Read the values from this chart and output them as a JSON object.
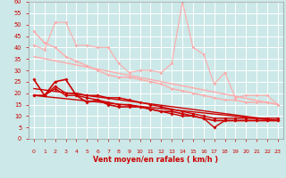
{
  "bg_color": "#cce8e8",
  "grid_color": "#ffffff",
  "xlabel": "Vent moyen/en rafales ( km/h )",
  "xlabel_color": "#cc0000",
  "tick_color": "#cc0000",
  "xlim": [
    -0.5,
    23.5
  ],
  "ylim": [
    0,
    60
  ],
  "yticks": [
    0,
    5,
    10,
    15,
    20,
    25,
    30,
    35,
    40,
    45,
    50,
    55,
    60
  ],
  "xticks": [
    0,
    1,
    2,
    3,
    4,
    5,
    6,
    7,
    8,
    9,
    10,
    11,
    12,
    13,
    14,
    15,
    16,
    17,
    18,
    19,
    20,
    21,
    22,
    23
  ],
  "lines": [
    {
      "x": [
        0,
        1,
        2,
        3,
        4,
        5,
        6,
        7,
        8,
        9,
        10,
        11,
        12,
        13,
        14,
        15,
        16,
        17,
        18,
        19,
        20,
        21,
        22,
        23
      ],
      "y": [
        47,
        42,
        40,
        36,
        34,
        32,
        30,
        28,
        27,
        27,
        26,
        25,
        24,
        22,
        21,
        20,
        19,
        18,
        17,
        17,
        16,
        16,
        16,
        15
      ],
      "color": "#ffaaaa",
      "lw": 1.0,
      "marker": "D",
      "ms": 1.8,
      "zorder": 2
    },
    {
      "x": [
        0,
        1,
        2,
        3,
        4,
        5,
        6,
        7,
        8,
        9,
        10,
        11,
        12,
        13,
        14,
        15,
        16,
        17,
        18,
        19,
        20,
        21,
        22,
        23
      ],
      "y": [
        41,
        39,
        51,
        51,
        41,
        41,
        40,
        40,
        33,
        29,
        30,
        30,
        29,
        33,
        60,
        40,
        37,
        24,
        29,
        18,
        19,
        19,
        19,
        15
      ],
      "color": "#ffaaaa",
      "lw": 0.8,
      "marker": "D",
      "ms": 1.8,
      "zorder": 2
    },
    {
      "x": [
        0,
        23
      ],
      "y": [
        36,
        15
      ],
      "color": "#ffaaaa",
      "lw": 1.0,
      "marker": null,
      "ms": 0,
      "zorder": 2
    },
    {
      "x": [
        0,
        1,
        2,
        3,
        4,
        5,
        6,
        7,
        8,
        9,
        10,
        11,
        12,
        13,
        14,
        15,
        16,
        17,
        18,
        19,
        20,
        21,
        22,
        23
      ],
      "y": [
        26,
        19,
        25,
        26,
        19,
        16,
        17,
        15,
        14,
        14,
        14,
        13,
        12,
        12,
        11,
        10,
        9,
        8,
        8,
        8,
        8,
        8,
        8,
        8
      ],
      "color": "#cc0000",
      "lw": 1.2,
      "marker": "D",
      "ms": 2.0,
      "zorder": 3
    },
    {
      "x": [
        0,
        1,
        2,
        3,
        4,
        5,
        6,
        7,
        8,
        9,
        10,
        11,
        12,
        13,
        14,
        15,
        16,
        17,
        18,
        19,
        20,
        21,
        22,
        23
      ],
      "y": [
        19,
        19,
        23,
        20,
        20,
        19,
        19,
        18,
        18,
        17,
        16,
        15,
        14,
        13,
        12,
        11,
        10,
        9,
        9,
        9,
        9,
        9,
        9,
        9
      ],
      "color": "#cc0000",
      "lw": 1.0,
      "marker": "D",
      "ms": 2.0,
      "zorder": 3
    },
    {
      "x": [
        0,
        1,
        2,
        3,
        4,
        5,
        6,
        7,
        8,
        9,
        10,
        11,
        12,
        13,
        14,
        15,
        16,
        17,
        18,
        19,
        20,
        21,
        22,
        23
      ],
      "y": [
        19,
        19,
        22,
        19,
        19,
        18,
        17,
        16,
        15,
        15,
        14,
        13,
        12,
        11,
        10,
        10,
        9,
        5,
        8,
        8,
        8,
        8,
        8,
        8
      ],
      "color": "#cc0000",
      "lw": 1.0,
      "marker": "D",
      "ms": 2.0,
      "zorder": 3
    },
    {
      "x": [
        0,
        23
      ],
      "y": [
        22,
        8
      ],
      "color": "#cc0000",
      "lw": 1.0,
      "marker": null,
      "ms": 0,
      "zorder": 3
    },
    {
      "x": [
        0,
        23
      ],
      "y": [
        19,
        8
      ],
      "color": "#cc0000",
      "lw": 1.0,
      "marker": null,
      "ms": 0,
      "zorder": 3
    }
  ],
  "wind_arrows_x": [
    0,
    1,
    2,
    3,
    4,
    5,
    6,
    7,
    8,
    9,
    10,
    11,
    12,
    13,
    14,
    15,
    16,
    17,
    18,
    19,
    20,
    21,
    22,
    23
  ],
  "arrow_angles_deg": [
    225,
    225,
    225,
    225,
    225,
    225,
    225,
    225,
    200,
    180,
    180,
    180,
    180,
    180,
    180,
    180,
    180,
    180,
    200,
    180,
    180,
    200,
    180,
    180
  ]
}
